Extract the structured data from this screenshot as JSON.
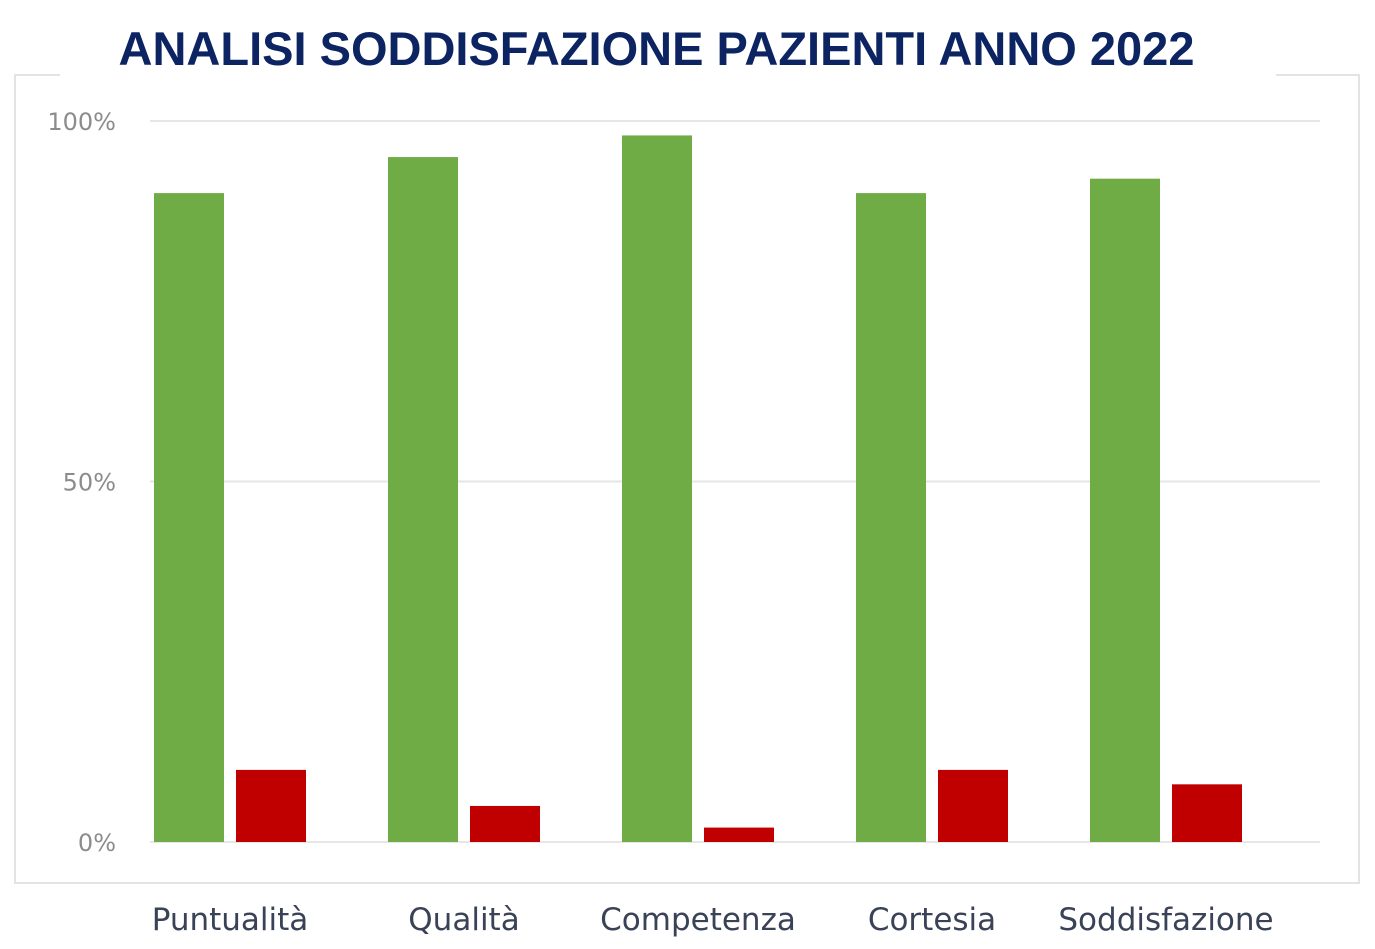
{
  "title": "ANALISI SODDISFAZIONE PAZIENTI ANNO 2022",
  "chart_data": {
    "type": "bar",
    "title": "ANALISI SODDISFAZIONE PAZIENTI ANNO 2022",
    "categories": [
      "Puntualità",
      "Qualità",
      "Competenza",
      "Cortesia",
      "Soddisfazione"
    ],
    "series": [
      {
        "color": "#6fac46",
        "values": [
          90,
          95,
          98,
          90,
          92
        ]
      },
      {
        "color": "#c00000",
        "values": [
          10,
          5,
          2,
          10,
          8
        ]
      }
    ],
    "ylim": [
      0,
      100
    ],
    "yticks": [
      0,
      50,
      100
    ],
    "ytick_labels": [
      "0%",
      "50%",
      "100%"
    ],
    "grid": true,
    "legend": "none"
  }
}
